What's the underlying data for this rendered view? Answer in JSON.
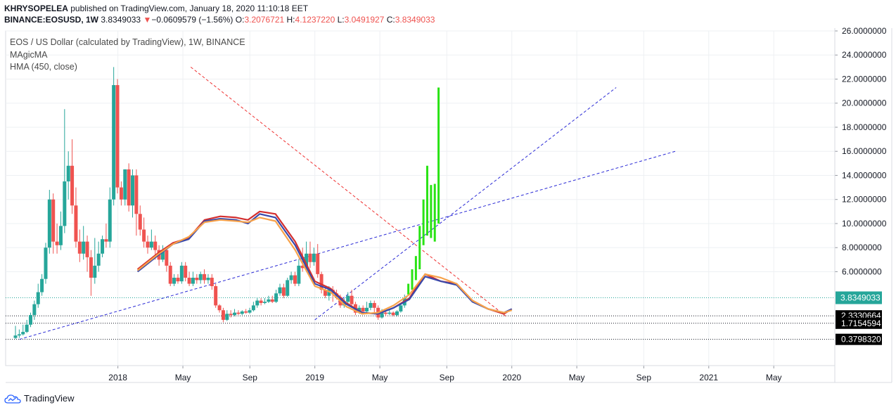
{
  "header": {
    "author": "KHRYSOPELEA",
    "published": "published on TradingView.com, January 18, 2020 11:10:18 EET",
    "symbol": "BINANCE:EOSUSD, 1W",
    "last": "3.8349033",
    "change_arrow": "▼",
    "change": "−0.0609579 (−1.56%)",
    "open_label": "O:",
    "open": "3.2076721",
    "high_label": "H:",
    "high": "4.1237220",
    "low_label": "L:",
    "low": "3.0491927",
    "close_label": "C:",
    "close": "3.8349033"
  },
  "legend": {
    "title": "EOS / US Dollar (calculated by TradingView), 1W, BINANCE",
    "indicator1": "MAgicMA",
    "indicator2": "HMA (450, close)"
  },
  "footer": {
    "brand": "TradingView"
  },
  "colors": {
    "up": "#26a69a",
    "down": "#ef5350",
    "projection": "#29e314",
    "ma_red": "#d32f2f",
    "ma_blue": "#3949ab",
    "hma": "#f7a24a",
    "trend_red": "#ef3030",
    "trend_blue": "#2a2ad6",
    "price_line": "#26a69a"
  },
  "chart_data": {
    "type": "candlestick",
    "title": "EOS / US Dollar (calculated by TradingView), 1W, BINANCE",
    "ylim": [
      -1.8,
      26
    ],
    "y_ticks": [
      "26.0000000",
      "24.0000000",
      "22.0000000",
      "20.0000000",
      "18.0000000",
      "16.0000000",
      "14.0000000",
      "12.0000000",
      "10.0000000",
      "8.0000000",
      "6.0000000"
    ],
    "x_ticks": [
      {
        "label": "2018",
        "t": 2018.0
      },
      {
        "label": "May",
        "t": 2018.33
      },
      {
        "label": "Sep",
        "t": 2018.67
      },
      {
        "label": "2019",
        "t": 2019.0
      },
      {
        "label": "May",
        "t": 2019.33
      },
      {
        "label": "Sep",
        "t": 2019.67
      },
      {
        "label": "2020",
        "t": 2020.0
      },
      {
        "label": "May",
        "t": 2020.33
      },
      {
        "label": "Sep",
        "t": 2020.67
      },
      {
        "label": "2021",
        "t": 2021.0
      },
      {
        "label": "May",
        "t": 2021.33
      }
    ],
    "x_range": [
      2017.43,
      2021.64
    ],
    "price_line": {
      "label": "3.8349033",
      "value": 3.8349033
    },
    "levels": [
      {
        "label": "2.3330664",
        "value": 2.3330664
      },
      {
        "label": "1.7154594",
        "value": 1.7154594
      },
      {
        "label": "0.3798320",
        "value": 0.379832
      }
    ],
    "candle_start": 2017.48,
    "candle_step": 0.01918,
    "candles": [
      [
        0.5,
        0.7,
        1.5,
        0.4
      ],
      [
        0.7,
        0.8,
        1.2,
        0.5
      ],
      [
        0.8,
        1.0,
        1.6,
        0.7
      ],
      [
        1.0,
        1.6,
        2.0,
        0.9
      ],
      [
        1.6,
        2.4,
        2.6,
        1.4
      ],
      [
        2.4,
        3.3,
        3.6,
        2.0
      ],
      [
        3.3,
        4.3,
        5.0,
        3.0
      ],
      [
        4.3,
        5.4,
        5.8,
        4.0
      ],
      [
        5.4,
        8.0,
        8.4,
        5.0
      ],
      [
        8.0,
        12.0,
        12.8,
        7.5
      ],
      [
        12.0,
        8.5,
        12.5,
        7.5
      ],
      [
        8.5,
        8.2,
        10.0,
        7.5
      ],
      [
        8.2,
        9.8,
        11.0,
        7.8
      ],
      [
        9.8,
        13.5,
        19.5,
        9.2
      ],
      [
        13.5,
        14.8,
        16.0,
        12.0
      ],
      [
        14.8,
        11.5,
        17.0,
        10.8
      ],
      [
        11.5,
        8.5,
        13.0,
        8.0
      ],
      [
        8.5,
        7.5,
        9.5,
        6.8
      ],
      [
        7.5,
        8.5,
        9.8,
        7.0
      ],
      [
        8.5,
        7.2,
        9.0,
        6.0
      ],
      [
        7.2,
        5.5,
        7.8,
        4.0
      ],
      [
        5.5,
        6.5,
        8.8,
        5.0
      ],
      [
        6.5,
        7.5,
        8.5,
        6.0
      ],
      [
        7.5,
        8.7,
        9.0,
        7.2
      ],
      [
        8.7,
        8.5,
        10.0,
        8.0
      ],
      [
        8.5,
        12.0,
        13.0,
        8.0
      ],
      [
        12.0,
        21.5,
        23.0,
        11.5
      ],
      [
        21.5,
        13.0,
        22.0,
        12.5
      ],
      [
        13.0,
        12.0,
        13.5,
        11.5
      ],
      [
        12.0,
        14.5,
        14.5,
        11.5
      ],
      [
        14.5,
        11.5,
        15.0,
        11.0
      ],
      [
        11.5,
        14.0,
        14.5,
        10.5
      ],
      [
        14.0,
        10.8,
        14.5,
        9.0
      ],
      [
        10.8,
        9.5,
        11.5,
        9.0
      ],
      [
        9.5,
        8.5,
        10.5,
        8.0
      ],
      [
        8.5,
        8.0,
        9.0,
        7.5
      ],
      [
        8.0,
        8.5,
        9.5,
        7.8
      ],
      [
        8.5,
        7.8,
        9.0,
        7.0
      ],
      [
        7.8,
        7.0,
        8.2,
        6.5
      ],
      [
        7.0,
        7.8,
        8.2,
        6.8
      ],
      [
        7.8,
        6.5,
        8.0,
        6.0
      ],
      [
        6.5,
        5.0,
        6.8,
        4.8
      ],
      [
        5.0,
        5.5,
        5.8,
        4.8
      ],
      [
        5.5,
        5.2,
        5.8,
        5.0
      ],
      [
        5.2,
        6.5,
        6.8,
        5.0
      ],
      [
        6.5,
        5.5,
        6.8,
        5.2
      ],
      [
        5.5,
        5.0,
        6.0,
        4.8
      ],
      [
        5.0,
        5.5,
        6.0,
        4.8
      ],
      [
        5.5,
        5.3,
        5.8,
        5.0
      ],
      [
        5.3,
        5.8,
        6.0,
        5.0
      ],
      [
        5.8,
        5.3,
        6.2,
        5.0
      ],
      [
        5.3,
        5.5,
        5.8,
        5.0
      ],
      [
        5.5,
        4.8,
        5.8,
        4.5
      ],
      [
        4.8,
        3.2,
        5.0,
        3.0
      ],
      [
        3.2,
        2.8,
        3.3,
        2.6
      ],
      [
        2.8,
        2.0,
        3.0,
        1.8
      ],
      [
        2.0,
        2.5,
        2.8,
        1.9
      ],
      [
        2.5,
        2.4,
        2.8,
        2.2
      ],
      [
        2.4,
        2.6,
        2.9,
        2.3
      ],
      [
        2.6,
        2.5,
        2.8,
        2.4
      ],
      [
        2.5,
        2.7,
        2.8,
        2.4
      ],
      [
        2.7,
        2.6,
        2.9,
        2.5
      ],
      [
        2.6,
        2.8,
        3.0,
        2.5
      ],
      [
        2.8,
        3.2,
        3.5,
        2.7
      ],
      [
        3.2,
        3.6,
        3.8,
        3.0
      ],
      [
        3.6,
        3.4,
        3.8,
        3.2
      ],
      [
        3.4,
        3.5,
        3.8,
        3.3
      ],
      [
        3.5,
        3.7,
        4.0,
        3.4
      ],
      [
        3.7,
        3.5,
        4.0,
        3.4
      ],
      [
        3.5,
        4.2,
        4.5,
        3.4
      ],
      [
        4.2,
        4.7,
        5.0,
        4.0
      ],
      [
        4.7,
        4.0,
        5.0,
        3.8
      ],
      [
        4.0,
        5.3,
        5.5,
        3.9
      ],
      [
        5.3,
        5.7,
        6.0,
        5.0
      ],
      [
        5.7,
        5.0,
        6.0,
        4.8
      ],
      [
        5.0,
        6.5,
        7.0,
        4.8
      ],
      [
        6.5,
        6.3,
        8.0,
        6.0
      ],
      [
        6.3,
        7.5,
        8.5,
        6.0
      ],
      [
        7.5,
        6.8,
        8.5,
        6.3
      ],
      [
        6.8,
        7.5,
        8.0,
        6.5
      ],
      [
        7.5,
        5.8,
        8.3,
        5.5
      ],
      [
        5.8,
        4.5,
        6.0,
        4.2
      ],
      [
        4.5,
        4.0,
        4.8,
        3.8
      ],
      [
        4.0,
        4.5,
        4.8,
        3.6
      ],
      [
        4.5,
        4.2,
        4.8,
        3.5
      ],
      [
        4.2,
        3.9,
        4.5,
        3.7
      ],
      [
        3.9,
        3.2,
        4.1,
        3.0
      ],
      [
        3.2,
        3.5,
        3.8,
        3.0
      ],
      [
        3.5,
        4.0,
        4.3,
        3.2
      ],
      [
        4.0,
        3.3,
        4.5,
        3.0
      ],
      [
        3.3,
        2.6,
        3.5,
        2.4
      ],
      [
        2.6,
        3.0,
        3.2,
        2.5
      ],
      [
        3.0,
        2.7,
        3.2,
        2.5
      ],
      [
        2.7,
        3.0,
        3.5,
        2.5
      ],
      [
        3.0,
        3.4,
        3.6,
        2.8
      ],
      [
        3.4,
        3.0,
        3.6,
        2.6
      ],
      [
        3.0,
        2.2,
        3.2,
        2.0
      ],
      [
        2.2,
        2.6,
        2.9,
        2.1
      ],
      [
        2.6,
        2.5,
        2.7,
        2.3
      ],
      [
        2.5,
        2.6,
        2.8,
        2.4
      ],
      [
        2.6,
        2.4,
        2.7,
        2.3
      ],
      [
        2.4,
        2.7,
        2.8,
        2.3
      ],
      [
        2.7,
        3.2,
        3.3,
        2.6
      ],
      [
        3.2,
        3.8,
        4.1,
        3.0
      ]
    ],
    "projection_bars": [
      [
        4.1,
        5.0
      ],
      [
        4.5,
        6.2
      ],
      [
        5.3,
        7.3
      ],
      [
        6.2,
        9.8
      ],
      [
        8.2,
        12.0
      ],
      [
        9.0,
        14.8
      ],
      [
        8.8,
        13.2
      ],
      [
        8.5,
        13.3
      ],
      [
        10.0,
        21.3
      ]
    ],
    "trendlines": [
      {
        "name": "red-descending-trendline",
        "color": "trend_red",
        "from": [
          2018.37,
          23.0
        ],
        "to": [
          2019.97,
          2.3
        ]
      },
      {
        "name": "blue-ascending-trendline",
        "color": "trend_blue",
        "from": [
          2017.5,
          0.38
        ],
        "to": [
          2020.83,
          16.0
        ]
      },
      {
        "name": "blue-projection-trendline",
        "color": "trend_blue",
        "from": [
          2019.0,
          2.0
        ],
        "to": [
          2020.53,
          21.3
        ]
      }
    ],
    "series": [
      {
        "name": "MAgicMA",
        "color": "ma_red",
        "x": [
          2018.1,
          2018.2,
          2018.28,
          2018.36,
          2018.44,
          2018.52,
          2018.6,
          2018.66,
          2018.72,
          2018.8,
          2018.9,
          2019.0,
          2019.08,
          2019.16,
          2019.24,
          2019.32,
          2019.4,
          2019.48,
          2019.56,
          2019.64,
          2019.72,
          2019.8,
          2019.88,
          2019.96,
          2020.0
        ],
        "values": [
          6.2,
          7.5,
          8.4,
          8.8,
          10.3,
          10.6,
          10.5,
          10.3,
          11.0,
          10.8,
          8.5,
          5.2,
          4.6,
          3.4,
          2.6,
          2.5,
          3.0,
          3.8,
          5.8,
          5.2,
          5.0,
          3.6,
          2.9,
          2.5,
          2.9
        ]
      },
      {
        "name": "MAgicMA-blue",
        "color": "ma_blue",
        "x": [
          2018.1,
          2018.2,
          2018.28,
          2018.36,
          2018.44,
          2018.52,
          2018.6,
          2018.66,
          2018.72,
          2018.8,
          2018.9,
          2019.0,
          2019.08,
          2019.16,
          2019.24,
          2019.32,
          2019.4,
          2019.48,
          2019.56,
          2019.64,
          2019.72,
          2019.8,
          2019.88,
          2019.96,
          2020.0
        ],
        "values": [
          6.0,
          7.3,
          8.3,
          8.7,
          10.2,
          10.4,
          10.3,
          10.0,
          10.8,
          10.5,
          8.2,
          5.0,
          4.5,
          3.3,
          2.6,
          2.5,
          3.0,
          3.7,
          5.6,
          5.2,
          4.9,
          3.5,
          2.9,
          2.6,
          2.9
        ]
      },
      {
        "name": "HMA (450, close)",
        "color": "hma",
        "x": [
          2018.1,
          2018.2,
          2018.28,
          2018.36,
          2018.44,
          2018.52,
          2018.6,
          2018.66,
          2018.72,
          2018.8,
          2018.9,
          2019.0,
          2019.08,
          2019.16,
          2019.24,
          2019.32,
          2019.4,
          2019.48,
          2019.56,
          2019.64,
          2019.72,
          2019.8,
          2019.88,
          2019.96,
          2020.0
        ],
        "values": [
          6.1,
          7.4,
          8.3,
          8.9,
          10.1,
          10.3,
          10.2,
          10.1,
          10.5,
          10.2,
          7.8,
          4.8,
          4.3,
          3.1,
          2.5,
          2.6,
          3.2,
          4.1,
          5.8,
          5.5,
          5.0,
          3.6,
          2.9,
          2.6,
          2.8
        ]
      }
    ]
  }
}
